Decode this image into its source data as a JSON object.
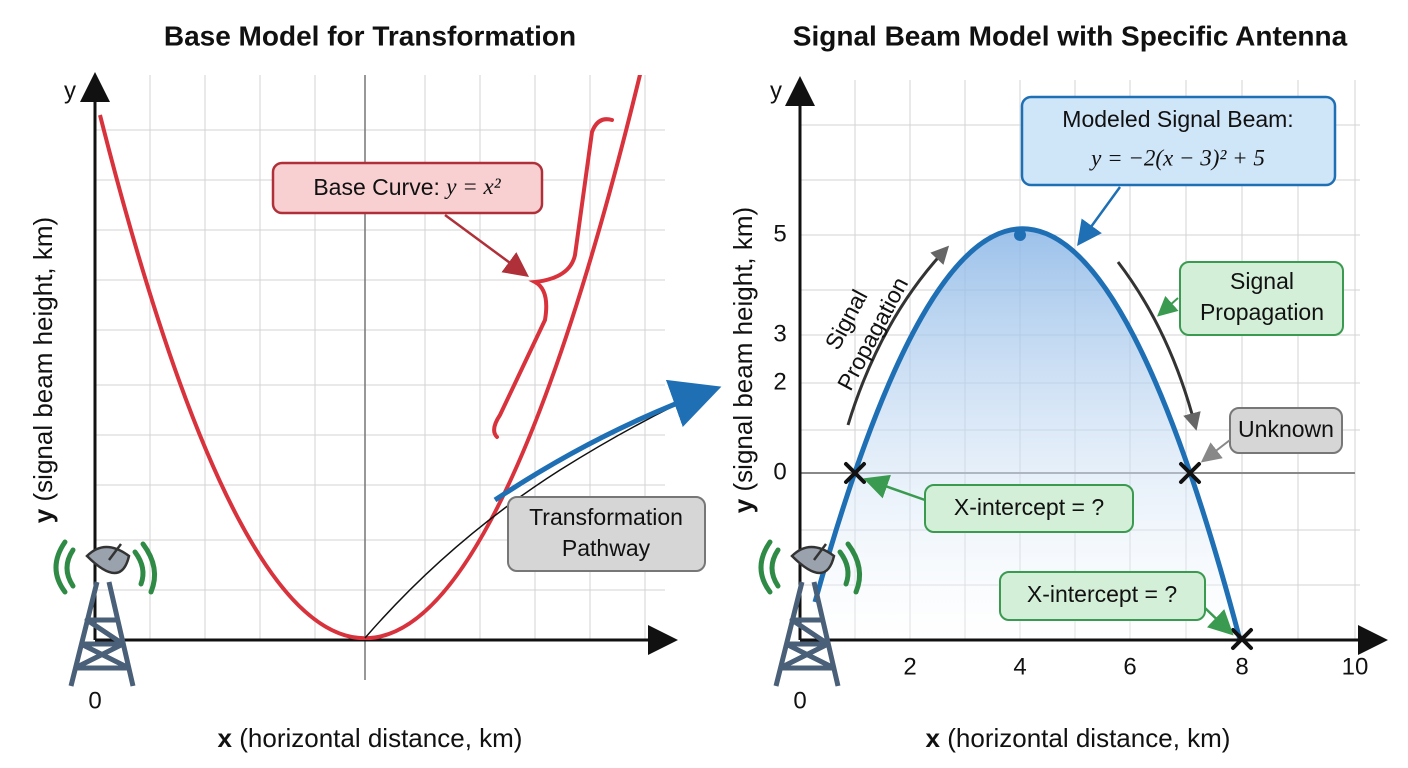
{
  "left_panel": {
    "title": "Base Model for Transformation",
    "y_axis_letter": "y",
    "y_label_var": "y",
    "y_label": "(signal beam height, km)",
    "x_label_var": "x",
    "x_label": "(horizontal distance, km)",
    "origin": "0",
    "curve_callout": {
      "label": "Base Curve:",
      "formula": "y = x²"
    },
    "pathway_callout": [
      "Transformation",
      "Pathway"
    ]
  },
  "right_panel": {
    "title": "Signal Beam Model with Specific Antenna",
    "y_axis_letter": "y",
    "y_label_var": "y",
    "y_label": "(signal beam height, km)",
    "x_label_var": "x",
    "x_label": "(horizontal distance, km)",
    "origin": "0",
    "x_ticks": [
      "2",
      "4",
      "6",
      "8",
      "10"
    ],
    "y_ticks": [
      "5",
      "3",
      "2",
      "0"
    ],
    "beam_callout": [
      "Modeled Signal Beam:",
      "y = −2(x − 3)² + 5"
    ],
    "propagation_left": [
      "Signal",
      "Propagation"
    ],
    "propagation_right": [
      "Signal",
      "Propagation"
    ],
    "unknown": "Unknown",
    "intercept_upper": "X-intercept = ?",
    "intercept_lower": "X-intercept = ?"
  }
}
